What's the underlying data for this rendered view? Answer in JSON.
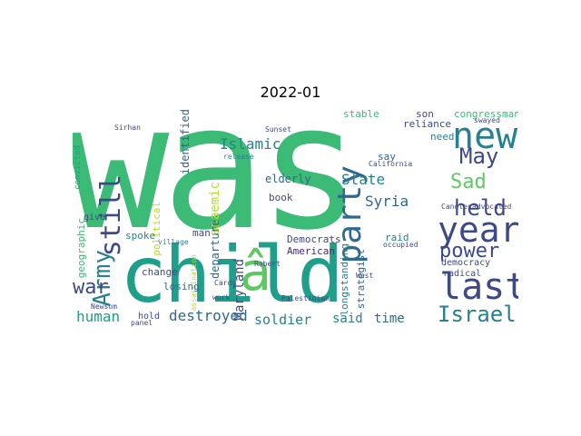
{
  "title": "2022-01",
  "words": {
    "was": "was",
    "child": "child",
    "a_circ": "â",
    "party": "party",
    "new": "new",
    "year": "year",
    "last": "last",
    "power": "power",
    "israel": "Israel",
    "still": "still",
    "army": "Army",
    "war": "war",
    "human": "human",
    "destroyed": "destroyed",
    "soldier": "soldier",
    "said": "said",
    "time": "time",
    "held": "held",
    "sad": "Sad",
    "may": "May",
    "islamic": "Islamic",
    "syria": "Syria",
    "state": "State",
    "anaemic": "anaemic",
    "elderly": "elderly",
    "book": "book",
    "maryland": "Maryland",
    "departure": "departure",
    "identified": "identified",
    "spoke": "spoke",
    "man": "man",
    "democrats": "Democrats",
    "american": "American",
    "change": "change",
    "losing": "losing",
    "hold": "hold",
    "political": "political",
    "geographic": "geographic",
    "give": "give",
    "strategist": "strategist",
    "longstanding": "longstanding",
    "raid": "raid",
    "democracy": "democracy",
    "radical": "radical",
    "congressman": "congressman",
    "reliance": "reliance",
    "stable": "stable",
    "son": "son",
    "need": "need",
    "say": "say",
    "california": "California",
    "sunset": "Sunset",
    "palestinian": "Palestinian",
    "robert": "Robert",
    "cards": "Cards",
    "newsom": "Newsom",
    "village": "village",
    "release": "release",
    "candles": "Candles",
    "advocated": "advocated",
    "swayed": "swayed",
    "convicted": "convicted",
    "sirhan": "Sirhan",
    "occupied": "occupied",
    "work": "work",
    "west": "West",
    "panel": "panel",
    "assassination": "assassination"
  },
  "colors": {
    "light_green": "#b5de2b",
    "green": "#3bbb75",
    "mid_green": "#5ec962",
    "teal": "#1f9e89",
    "teal_dark": "#26828e",
    "blue": "#31688e",
    "indigo": "#3e4989",
    "purple": "#482878",
    "dark": "#440154",
    "yellow": "#cbe11e"
  }
}
